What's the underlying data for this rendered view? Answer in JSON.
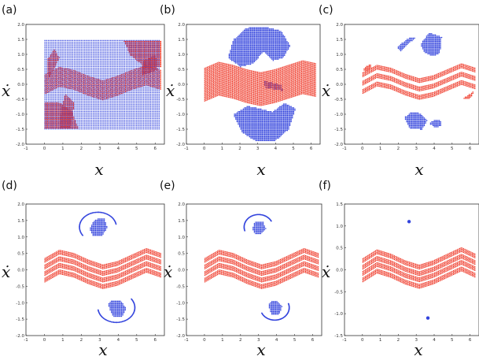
{
  "chart_data": [
    {
      "panel": "(a)",
      "type": "scatter",
      "xlabel": "x",
      "ylabel": "ẋ",
      "xlim": [
        -1,
        6.5
      ],
      "ylim": [
        -2.0,
        2.0
      ],
      "xticks": [
        "-1",
        "0",
        "1",
        "2",
        "3",
        "4",
        "5",
        "6"
      ],
      "yticks": [
        "-2.0",
        "-1.5",
        "-1.0",
        "-0.5",
        "0.0",
        "0.5",
        "1.0",
        "1.5",
        "2.0"
      ],
      "series": [
        {
          "color": "#ee3322",
          "regions": [
            {
              "kind": "band",
              "x": [
                0,
                6.28
              ],
              "center": [
                0.0,
                0.25,
                0.15,
                -0.05,
                -0.2,
                -0.05,
                0.15,
                0.3,
                0.15
              ],
              "half_width": 0.33
            },
            {
              "kind": "blob",
              "points": [
                [
                  4.3,
                  1.45
                ],
                [
                  6.28,
                  1.45
                ],
                [
                  6.28,
                  0.6
                ],
                [
                  5.4,
                  0.6
                ],
                [
                  4.6,
                  1.0
                ]
              ]
            },
            {
              "kind": "blob",
              "points": [
                [
                  0,
                  -1.45
                ],
                [
                  1.8,
                  -1.45
                ],
                [
                  1.5,
                  -0.9
                ],
                [
                  0.8,
                  -0.6
                ],
                [
                  0,
                  -0.6
                ]
              ]
            },
            {
              "kind": "blob",
              "points": [
                [
                  0.8,
                  -1.45
                ],
                [
                  1.4,
                  -1.45
                ],
                [
                  1.6,
                  -0.6
                ],
                [
                  1.1,
                  -0.3
                ],
                [
                  0.9,
                  -0.8
                ]
              ]
            },
            {
              "kind": "blob",
              "points": [
                [
                  5.2,
                  0.3
                ],
                [
                  6.1,
                  0.5
                ],
                [
                  6.0,
                  1.0
                ],
                [
                  5.3,
                  0.8
                ]
              ]
            },
            {
              "kind": "blob",
              "points": [
                [
                  0.2,
                  0.2
                ],
                [
                  0.8,
                  0.9
                ],
                [
                  0.5,
                  1.2
                ],
                [
                  0.1,
                  0.8
                ]
              ]
            }
          ]
        },
        {
          "color": "#3344dd",
          "regions": [
            {
              "kind": "rect",
              "x": [
                0,
                6.28
              ],
              "y": [
                -1.48,
                1.48
              ]
            }
          ]
        }
      ]
    },
    {
      "panel": "(b)",
      "type": "scatter",
      "xlabel": "x",
      "ylabel": "ẋ",
      "xlim": [
        -1,
        6.5
      ],
      "ylim": [
        -2.0,
        2.0
      ],
      "xticks": [
        "-1",
        "0",
        "1",
        "2",
        "3",
        "4",
        "5",
        "6"
      ],
      "yticks": [
        "-2.0",
        "-1.5",
        "-1.0",
        "-0.5",
        "0.0",
        "0.5",
        "1.0",
        "1.5",
        "2.0"
      ],
      "series": [
        {
          "color": "#3344dd",
          "regions": [
            {
              "kind": "blob",
              "points": [
                [
                  1.3,
                  0.9
                ],
                [
                  1.6,
                  1.5
                ],
                [
                  2.3,
                  1.9
                ],
                [
                  3.3,
                  1.95
                ],
                [
                  4.3,
                  1.8
                ],
                [
                  4.8,
                  1.3
                ],
                [
                  4.4,
                  0.9
                ],
                [
                  3.8,
                  0.8
                ],
                [
                  3.3,
                  1.1
                ],
                [
                  2.7,
                  0.7
                ],
                [
                  2.0,
                  0.6
                ]
              ]
            },
            {
              "kind": "blob",
              "points": [
                [
                  1.6,
                  -1.0
                ],
                [
                  2.1,
                  -1.6
                ],
                [
                  2.9,
                  -1.9
                ],
                [
                  3.9,
                  -1.9
                ],
                [
                  4.7,
                  -1.5
                ],
                [
                  5.1,
                  -0.8
                ],
                [
                  4.5,
                  -0.6
                ],
                [
                  3.8,
                  -0.9
                ],
                [
                  3.1,
                  -0.8
                ],
                [
                  2.4,
                  -0.7
                ]
              ]
            },
            {
              "kind": "blob",
              "points": [
                [
                  3.3,
                  0.15
                ],
                [
                  4.3,
                  0.0
                ],
                [
                  4.4,
                  -0.2
                ],
                [
                  3.4,
                  -0.1
                ]
              ]
            }
          ]
        },
        {
          "color": "#ee3322",
          "regions": [
            {
              "kind": "band",
              "x": [
                0,
                6.28
              ],
              "center": [
                0.0,
                0.2,
                0.1,
                -0.05,
                -0.15,
                -0.05,
                0.1,
                0.25,
                0.15
              ],
              "half_width": 0.55
            }
          ]
        }
      ]
    },
    {
      "panel": "(c)",
      "type": "scatter",
      "xlabel": "x",
      "ylabel": "ẋ",
      "xlim": [
        -1,
        6.5
      ],
      "ylim": [
        -2.0,
        2.0
      ],
      "xticks": [
        "-1",
        "0",
        "1",
        "2",
        "3",
        "4",
        "5",
        "6"
      ],
      "yticks": [
        "-2.0",
        "-1.5",
        "-1.0",
        "-0.5",
        "0.0",
        "0.5",
        "1.0",
        "1.5",
        "2.0"
      ],
      "series": [
        {
          "color": "#ee3322",
          "regions": [
            {
              "kind": "strands",
              "x": [
                0,
                6.28
              ],
              "center": [
                0.05,
                0.3,
                0.2,
                0.0,
                -0.15,
                -0.05,
                0.15,
                0.35,
                0.2
              ],
              "offsets": [
                -0.28,
                0.0,
                0.28
              ],
              "half_width": 0.07
            },
            {
              "kind": "blob",
              "points": [
                [
                  0.1,
                  0.6
                ],
                [
                  0.5,
                  0.7
                ],
                [
                  0.4,
                  0.5
                ],
                [
                  0.0,
                  0.45
                ]
              ]
            },
            {
              "kind": "blob",
              "points": [
                [
                  5.5,
                  -0.5
                ],
                [
                  6.2,
                  -0.2
                ],
                [
                  6.0,
                  -0.45
                ]
              ]
            }
          ]
        },
        {
          "color": "#3344dd",
          "regions": [
            {
              "kind": "blob",
              "points": [
                [
                  3.2,
                  1.35
                ],
                [
                  3.7,
                  1.75
                ],
                [
                  4.4,
                  1.6
                ],
                [
                  4.3,
                  1.05
                ],
                [
                  3.9,
                  0.95
                ],
                [
                  3.4,
                  1.1
                ]
              ]
            },
            {
              "kind": "blob",
              "points": [
                [
                  1.9,
                  1.25
                ],
                [
                  2.5,
                  1.55
                ],
                [
                  3.0,
                  1.6
                ],
                [
                  2.6,
                  1.4
                ],
                [
                  2.1,
                  1.1
                ]
              ]
            },
            {
              "kind": "blob",
              "points": [
                [
                  2.3,
                  -1.1
                ],
                [
                  2.6,
                  -1.45
                ],
                [
                  3.3,
                  -1.5
                ],
                [
                  3.6,
                  -1.2
                ],
                [
                  3.2,
                  -0.95
                ],
                [
                  2.7,
                  -0.9
                ]
              ]
            },
            {
              "kind": "blob",
              "points": [
                [
                  3.7,
                  -1.3
                ],
                [
                  4.1,
                  -1.45
                ],
                [
                  4.4,
                  -1.35
                ],
                [
                  4.3,
                  -1.15
                ],
                [
                  3.9,
                  -1.2
                ]
              ]
            }
          ]
        }
      ]
    },
    {
      "panel": "(d)",
      "type": "scatter",
      "xlabel": "x",
      "ylabel": "ẋ",
      "xlim": [
        -1,
        6.5
      ],
      "ylim": [
        -2.0,
        2.0
      ],
      "xticks": [
        "-1",
        "0",
        "1",
        "2",
        "3",
        "4",
        "5",
        "6"
      ],
      "yticks": [
        "-2.0",
        "-1.5",
        "-1.0",
        "-0.5",
        "0.0",
        "0.5",
        "1.0",
        "1.5",
        "2.0"
      ],
      "series": [
        {
          "color": "#ee3322",
          "regions": [
            {
              "kind": "strands",
              "x": [
                0,
                6.28
              ],
              "center": [
                0.0,
                0.25,
                0.15,
                -0.05,
                -0.2,
                -0.1,
                0.1,
                0.3,
                0.15
              ],
              "offsets": [
                -0.3,
                -0.1,
                0.1,
                0.3
              ],
              "half_width": 0.06
            }
          ]
        },
        {
          "color": "#3344dd",
          "regions": [
            {
              "kind": "blob",
              "points": [
                [
                  2.4,
                  1.25
                ],
                [
                  2.7,
                  1.55
                ],
                [
                  3.2,
                  1.6
                ],
                [
                  3.4,
                  1.3
                ],
                [
                  3.1,
                  1.05
                ],
                [
                  2.6,
                  1.05
                ]
              ]
            },
            {
              "kind": "blob",
              "points": [
                [
                  3.4,
                  -1.05
                ],
                [
                  3.7,
                  -1.4
                ],
                [
                  4.2,
                  -1.4
                ],
                [
                  4.4,
                  -1.15
                ],
                [
                  4.1,
                  -0.9
                ],
                [
                  3.6,
                  -0.9
                ]
              ]
            },
            {
              "kind": "arc",
              "cx": 2.9,
              "cy": 1.3,
              "rx": 1.0,
              "ry": 0.45,
              "a0": 0.2,
              "a1": 3.8
            },
            {
              "kind": "arc",
              "cx": 3.9,
              "cy": -1.15,
              "rx": 1.0,
              "ry": 0.45,
              "a0": 3.3,
              "a1": 6.9
            }
          ]
        }
      ]
    },
    {
      "panel": "(e)",
      "type": "scatter",
      "xlabel": "x",
      "ylabel": "ẋ",
      "xlim": [
        -1,
        6.5
      ],
      "ylim": [
        -2.0,
        2.0
      ],
      "xticks": [
        "-1",
        "0",
        "1",
        "2",
        "3",
        "4",
        "5",
        "6"
      ],
      "yticks": [
        "-2.0",
        "-1.5",
        "-1.0",
        "-0.5",
        "0.0",
        "0.5",
        "1.0",
        "1.5",
        "2.0"
      ],
      "series": [
        {
          "color": "#ee3322",
          "regions": [
            {
              "kind": "strands",
              "x": [
                0,
                6.28
              ],
              "center": [
                0.0,
                0.25,
                0.15,
                -0.05,
                -0.2,
                -0.1,
                0.1,
                0.3,
                0.15
              ],
              "offsets": [
                -0.3,
                -0.1,
                0.1,
                0.3
              ],
              "half_width": 0.06
            }
          ]
        },
        {
          "color": "#3344dd",
          "regions": [
            {
              "kind": "blob",
              "points": [
                [
                  2.6,
                  1.25
                ],
                [
                  2.8,
                  1.5
                ],
                [
                  3.2,
                  1.5
                ],
                [
                  3.4,
                  1.25
                ],
                [
                  3.1,
                  1.1
                ],
                [
                  2.8,
                  1.1
                ]
              ]
            },
            {
              "kind": "blob",
              "points": [
                [
                  3.5,
                  -1.05
                ],
                [
                  3.7,
                  -1.35
                ],
                [
                  4.1,
                  -1.35
                ],
                [
                  4.3,
                  -1.1
                ],
                [
                  4.0,
                  -0.95
                ],
                [
                  3.7,
                  -0.95
                ]
              ]
            },
            {
              "kind": "arc",
              "cx": 3.0,
              "cy": 1.3,
              "rx": 0.8,
              "ry": 0.38,
              "a0": 0.5,
              "a1": 3.5
            },
            {
              "kind": "arc",
              "cx": 3.9,
              "cy": -1.15,
              "rx": 0.8,
              "ry": 0.38,
              "a0": 3.6,
              "a1": 6.6
            }
          ]
        }
      ]
    },
    {
      "panel": "(f)",
      "type": "scatter",
      "xlabel": "x",
      "ylabel": "ẋ",
      "xlim": [
        -1,
        6.5
      ],
      "ylim": [
        -1.5,
        1.5
      ],
      "xticks": [
        "-1",
        "0",
        "1",
        "2",
        "3",
        "4",
        "5",
        "6"
      ],
      "yticks": [
        "-1.5",
        "-1.0",
        "-0.5",
        "0.0",
        "0.5",
        "1.0",
        "1.5"
      ],
      "series": [
        {
          "color": "#ee3322",
          "regions": [
            {
              "kind": "strands",
              "x": [
                0,
                6.28
              ],
              "center": [
                0.0,
                0.2,
                0.1,
                -0.05,
                -0.15,
                -0.05,
                0.1,
                0.25,
                0.1
              ],
              "offsets": [
                -0.22,
                -0.07,
                0.07,
                0.22
              ],
              "half_width": 0.045
            }
          ]
        },
        {
          "color": "#3344dd",
          "points": [
            [
              2.6,
              1.1
            ],
            [
              3.65,
              -1.1
            ]
          ]
        }
      ]
    }
  ]
}
